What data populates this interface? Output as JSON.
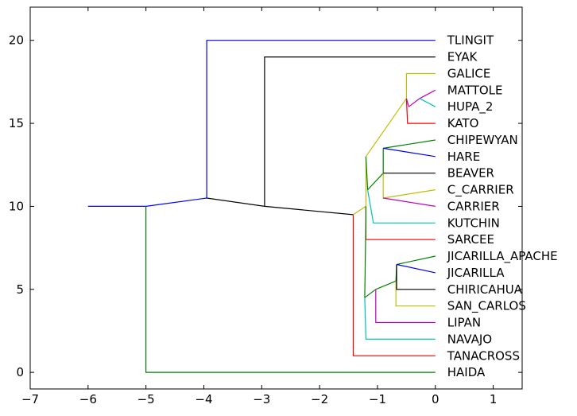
{
  "chart_data": {
    "type": "line",
    "title": "",
    "xlabel": "",
    "ylabel": "",
    "xlim": [
      -7,
      1.5
    ],
    "ylim": [
      -1,
      22
    ],
    "xticks": [
      -7,
      -6,
      -5,
      -4,
      -3,
      -2,
      -1,
      0,
      1
    ],
    "yticks": [
      0,
      5,
      10,
      15,
      20
    ],
    "grid": false,
    "leaves": [
      {
        "name": "TLINGIT",
        "y": 20
      },
      {
        "name": "EYAK",
        "y": 19
      },
      {
        "name": "GALICE",
        "y": 18
      },
      {
        "name": "MATTOLE",
        "y": 17
      },
      {
        "name": "HUPA_2",
        "y": 16
      },
      {
        "name": "KATO",
        "y": 15
      },
      {
        "name": "CHIPEWYAN",
        "y": 14
      },
      {
        "name": "HARE",
        "y": 13
      },
      {
        "name": "BEAVER",
        "y": 12
      },
      {
        "name": "C_CARRIER",
        "y": 11
      },
      {
        "name": "CARRIER",
        "y": 10
      },
      {
        "name": "KUTCHIN",
        "y": 9
      },
      {
        "name": "SARCEE",
        "y": 8
      },
      {
        "name": "JICARILLA_APACHE",
        "y": 7
      },
      {
        "name": "JICARILLA",
        "y": 6
      },
      {
        "name": "CHIRICAHUA",
        "y": 5
      },
      {
        "name": "SAN_CARLOS",
        "y": 4
      },
      {
        "name": "LIPAN",
        "y": 3
      },
      {
        "name": "NAVAJO",
        "y": 2
      },
      {
        "name": "TANACROSS",
        "y": 1
      },
      {
        "name": "HAIDA",
        "y": 0
      }
    ],
    "segments": [
      {
        "color": "#0000ff",
        "points": [
          [
            -6,
            10
          ],
          [
            -5,
            10
          ]
        ]
      },
      {
        "color": "#008000",
        "points": [
          [
            -5,
            10
          ],
          [
            -5,
            0
          ],
          [
            0,
            0
          ]
        ]
      },
      {
        "color": "#0000ff",
        "points": [
          [
            -5,
            10
          ],
          [
            -3.95,
            10.5
          ]
        ]
      },
      {
        "color": "#0000ff",
        "points": [
          [
            -3.95,
            10.5
          ],
          [
            -3.95,
            20
          ],
          [
            0,
            20
          ]
        ]
      },
      {
        "color": "#000000",
        "points": [
          [
            -3.95,
            10.5
          ],
          [
            -2.95,
            10
          ]
        ]
      },
      {
        "color": "#000000",
        "points": [
          [
            -2.95,
            10
          ],
          [
            -2.95,
            19
          ],
          [
            0,
            19
          ]
        ]
      },
      {
        "color": "#000000",
        "points": [
          [
            -2.95,
            10
          ],
          [
            -1.42,
            9.5
          ]
        ]
      },
      {
        "color": "#ff0000",
        "points": [
          [
            -1.42,
            9.5
          ],
          [
            -1.42,
            1
          ],
          [
            0,
            1
          ]
        ]
      },
      {
        "color": "#bfbf00",
        "points": [
          [
            -1.42,
            9.5
          ],
          [
            -1.2,
            10
          ]
        ]
      },
      {
        "color": "#ff0000",
        "points": [
          [
            -1.2,
            10
          ],
          [
            -1.2,
            8
          ],
          [
            0,
            8
          ]
        ]
      },
      {
        "color": "#008000",
        "points": [
          [
            -1.2,
            10
          ],
          [
            -1.2,
            9.3
          ],
          [
            -1.22,
            4.5
          ]
        ]
      },
      {
        "color": "#00bfbf",
        "points": [
          [
            -1.22,
            4.5
          ],
          [
            -1.2,
            2
          ],
          [
            0,
            2
          ]
        ]
      },
      {
        "color": "#008000",
        "points": [
          [
            -1.22,
            4.5
          ],
          [
            -1.03,
            5
          ]
        ]
      },
      {
        "color": "#bf00bf",
        "points": [
          [
            -1.03,
            5
          ],
          [
            -1.03,
            3
          ],
          [
            0,
            3
          ]
        ]
      },
      {
        "color": "#008000",
        "points": [
          [
            -1.03,
            5
          ],
          [
            -0.68,
            5.5
          ]
        ]
      },
      {
        "color": "#bfbf00",
        "points": [
          [
            -0.68,
            5.5
          ],
          [
            -0.68,
            4
          ],
          [
            0,
            4
          ]
        ]
      },
      {
        "color": "#008000",
        "points": [
          [
            -0.68,
            5.5
          ],
          [
            -0.67,
            6.5
          ]
        ]
      },
      {
        "color": "#000000",
        "points": [
          [
            -0.67,
            6.5
          ],
          [
            -0.67,
            5
          ],
          [
            0,
            5
          ]
        ]
      },
      {
        "color": "#008000",
        "points": [
          [
            -0.67,
            6.5
          ],
          [
            0,
            7
          ]
        ]
      },
      {
        "color": "#0000ff",
        "points": [
          [
            -0.67,
            6.5
          ],
          [
            0,
            6
          ]
        ]
      },
      {
        "color": "#bfbf00",
        "points": [
          [
            -1.2,
            10
          ],
          [
            -1.2,
            13
          ]
        ]
      },
      {
        "color": "#008000",
        "points": [
          [
            -1.2,
            13
          ],
          [
            -1.17,
            11
          ]
        ]
      },
      {
        "color": "#00bfbf",
        "points": [
          [
            -1.17,
            11
          ],
          [
            -1.07,
            9
          ],
          [
            0,
            9
          ]
        ]
      },
      {
        "color": "#008000",
        "points": [
          [
            -1.17,
            11
          ],
          [
            -0.9,
            12
          ]
        ]
      },
      {
        "color": "#bfbf00",
        "points": [
          [
            -0.9,
            12
          ],
          [
            -0.9,
            10.5
          ],
          [
            0,
            11
          ]
        ]
      },
      {
        "color": "#bf00bf",
        "points": [
          [
            -0.9,
            10.5
          ],
          [
            0,
            10
          ]
        ]
      },
      {
        "color": "#008000",
        "points": [
          [
            -0.9,
            12
          ],
          [
            -0.9,
            13.5
          ]
        ]
      },
      {
        "color": "#000000",
        "points": [
          [
            -0.9,
            12
          ],
          [
            0,
            12
          ]
        ]
      },
      {
        "color": "#008000",
        "points": [
          [
            -0.9,
            13.5
          ],
          [
            0,
            14
          ]
        ]
      },
      {
        "color": "#0000ff",
        "points": [
          [
            -0.9,
            13.5
          ],
          [
            0,
            13
          ]
        ]
      },
      {
        "color": "#bfbf00",
        "points": [
          [
            -1.2,
            13
          ],
          [
            -0.5,
            16.5
          ]
        ]
      },
      {
        "color": "#ff0000",
        "points": [
          [
            -0.5,
            16.5
          ],
          [
            -0.48,
            15
          ],
          [
            0,
            15
          ]
        ]
      },
      {
        "color": "#bf00bf",
        "points": [
          [
            -0.5,
            16.5
          ],
          [
            -0.46,
            16
          ]
        ]
      },
      {
        "color": "#bf00bf",
        "points": [
          [
            -0.46,
            16
          ],
          [
            -0.27,
            16.5
          ],
          [
            0,
            17
          ]
        ]
      },
      {
        "color": "#00bfbf",
        "points": [
          [
            -0.27,
            16.5
          ],
          [
            0,
            16
          ]
        ]
      },
      {
        "color": "#bfbf00",
        "points": [
          [
            -0.5,
            16.5
          ],
          [
            -0.5,
            18
          ],
          [
            0,
            18
          ]
        ]
      }
    ]
  }
}
